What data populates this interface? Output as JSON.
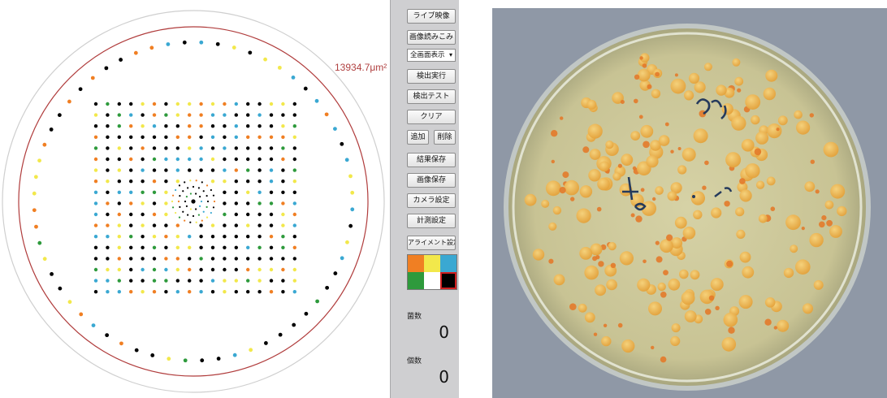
{
  "canvas": {
    "area_label": "13934.7μm²"
  },
  "panel": {
    "live_button": "ライブ映像",
    "load_image_button": "画像読みこみ",
    "display_select": {
      "value": "全画面表示"
    },
    "detect_run_button": "検出実行",
    "detect_test_button": "検出テスト",
    "clear_button": "クリア",
    "add_button": "追加",
    "delete_button": "削除",
    "save_results_button": "結果保存",
    "save_image_button": "画像保存",
    "camera_settings_button": "カメラ設定",
    "measure_settings_button": "計測設定",
    "alignment_settings_button": "アライメント設定",
    "color_swatches": [
      {
        "color": "#f07f23"
      },
      {
        "color": "#f2e84b"
      },
      {
        "color": "#3aa8d2"
      },
      {
        "color": "#2e9a3c"
      },
      {
        "color": "#ffffff"
      },
      {
        "color": "#000000",
        "selected": true
      }
    ],
    "count1_label": "菌数",
    "count1_value": "0",
    "count2_label": "個数",
    "count2_value": "0"
  },
  "colors": {
    "dot_palette": [
      "#000000",
      "#f07f23",
      "#f2e84b",
      "#3aa8d2",
      "#2e9a3c"
    ],
    "inner_circle": "#b03c3c",
    "outer_circle": "#cfcfcf"
  }
}
